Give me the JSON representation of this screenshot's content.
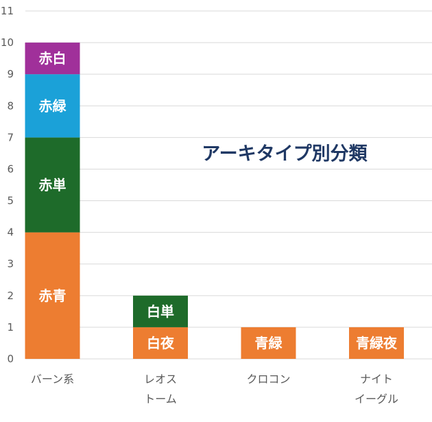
{
  "chart_data": {
    "type": "bar",
    "stacked": true,
    "title": "アーキタイプ別分類",
    "title_position": "inside-upper-right",
    "categories": [
      [
        "バーン系"
      ],
      [
        "レオス",
        "トーム"
      ],
      [
        "クロコン"
      ],
      [
        "ナイト",
        "イーグル"
      ]
    ],
    "ylim": [
      0,
      11
    ],
    "yticks": [
      0,
      1,
      2,
      3,
      4,
      5,
      6,
      7,
      8,
      9,
      10,
      11
    ],
    "grid": true,
    "legend": "none",
    "stacks": [
      [
        {
          "label": "赤青",
          "value": 4,
          "color": "#ed7d31"
        },
        {
          "label": "赤単",
          "value": 3,
          "color": "#1e6b2a"
        },
        {
          "label": "赤緑",
          "value": 2,
          "color": "#1ba1d8"
        },
        {
          "label": "赤白",
          "value": 1,
          "color": "#a0309a"
        }
      ],
      [
        {
          "label": "白夜",
          "value": 1,
          "color": "#ed7d31"
        },
        {
          "label": "白単",
          "value": 1,
          "color": "#1e6b2a"
        }
      ],
      [
        {
          "label": "青緑",
          "value": 1,
          "color": "#ed7d31"
        }
      ],
      [
        {
          "label": "青緑夜",
          "value": 1,
          "color": "#ed7d31"
        }
      ]
    ]
  }
}
